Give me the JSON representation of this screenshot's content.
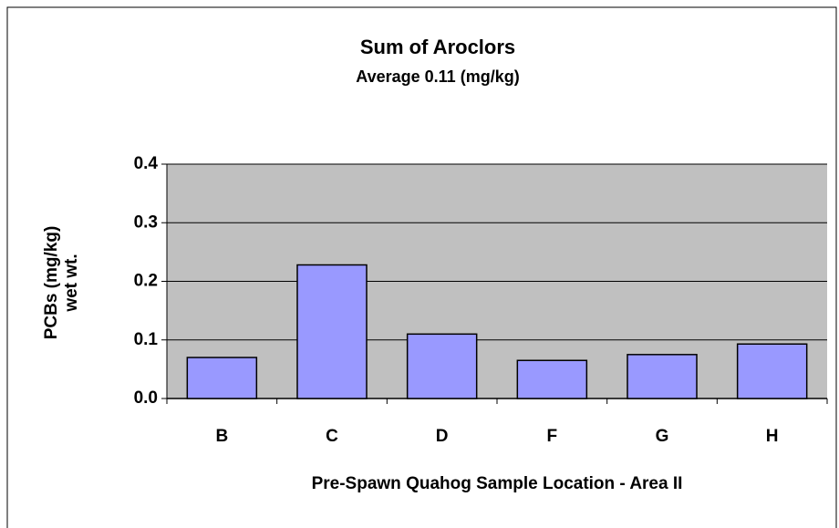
{
  "chart_data": {
    "type": "bar",
    "title": "Sum of  Aroclors",
    "subtitle": "Average 0.11 (mg/kg)",
    "xlabel": "Pre-Spawn Quahog Sample Location  - Area II",
    "ylabel": [
      "PCBs (mg/kg)",
      "wet wt."
    ],
    "categories": [
      "B",
      "C",
      "D",
      "F",
      "G",
      "H"
    ],
    "values": [
      0.07,
      0.228,
      0.11,
      0.065,
      0.075,
      0.093
    ],
    "color": "#9999ff",
    "plot_background": "#c0c0c0",
    "ylim": [
      0,
      0.4
    ],
    "yticks": [
      {
        "value": 0,
        "label": "0.0"
      },
      0.1,
      0.2,
      0.3,
      0.4
    ],
    "grid": true
  }
}
